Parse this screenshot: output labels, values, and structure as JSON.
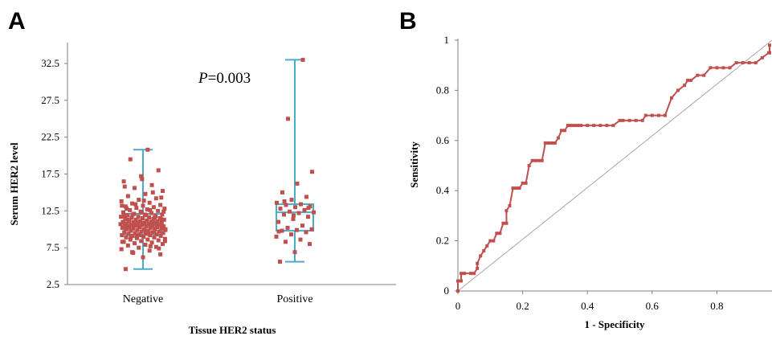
{
  "panel_a": {
    "label": "A"
  },
  "panel_b": {
    "label": "B"
  },
  "chart_data": [
    {
      "type": "box",
      "panel": "A",
      "title": "",
      "xlabel": "Tissue HER2 status",
      "ylabel": "Serum HER2 level",
      "ylim": [
        2.5,
        35
      ],
      "yticks": [
        "2.5",
        "7.5",
        "12.5",
        "17.5",
        "22.5",
        "27.5",
        "32.5"
      ],
      "categories": [
        "Negative",
        "Positive"
      ],
      "annotation": {
        "italic": "P",
        "text": "=0.003"
      },
      "boxes": [
        {
          "category": "Negative",
          "min": 4.6,
          "q1": 9.3,
          "median": 10.6,
          "q3": 12.1,
          "max": 20.8
        },
        {
          "category": "Positive",
          "min": 5.6,
          "q1": 9.8,
          "median": 12.3,
          "q3": 13.4,
          "max": 33.0
        }
      ],
      "points": {
        "Negative": [
          4.6,
          6.2,
          6.6,
          6.9,
          7.1,
          7.3,
          7.5,
          7.6,
          7.8,
          7.9,
          8.0,
          8.1,
          8.2,
          8.3,
          8.4,
          8.5,
          8.6,
          8.6,
          8.7,
          8.8,
          8.9,
          8.9,
          9.0,
          9.1,
          9.1,
          9.2,
          9.2,
          9.3,
          9.3,
          9.4,
          9.4,
          9.5,
          9.5,
          9.6,
          9.6,
          9.7,
          9.7,
          9.8,
          9.8,
          9.9,
          9.9,
          10.0,
          10.0,
          10.0,
          10.1,
          10.1,
          10.2,
          10.2,
          10.3,
          10.3,
          10.3,
          10.4,
          10.4,
          10.5,
          10.5,
          10.5,
          10.6,
          10.6,
          10.6,
          10.7,
          10.7,
          10.8,
          10.8,
          10.8,
          10.9,
          10.9,
          11.0,
          11.0,
          11.0,
          11.1,
          11.1,
          11.2,
          11.2,
          11.3,
          11.3,
          11.4,
          11.4,
          11.5,
          11.5,
          11.6,
          11.6,
          11.7,
          11.7,
          11.8,
          11.9,
          12.0,
          12.0,
          12.1,
          12.2,
          12.3,
          12.4,
          12.5,
          12.6,
          12.7,
          12.8,
          12.9,
          13.0,
          13.1,
          13.2,
          13.3,
          13.5,
          13.6,
          13.8,
          14.0,
          14.2,
          14.5,
          14.8,
          15.2,
          15.6,
          16.0,
          16.5,
          17.2,
          18.0,
          19.5,
          20.8,
          8.4,
          9.0,
          9.6,
          10.2,
          10.8,
          11.4,
          12.0,
          12.6,
          13.2,
          10.4,
          10.9,
          11.3,
          9.8,
          10.1,
          10.6,
          11.0,
          11.8,
          12.3,
          7.4,
          8.9,
          9.4,
          10.0,
          10.7,
          11.6,
          12.8,
          13.9,
          14.3,
          6.8,
          7.7,
          8.3,
          9.2,
          10.3,
          11.1,
          11.9,
          12.4,
          13.4,
          15.0,
          15.8,
          16.8
        ],
        "Positive": [
          5.6,
          6.9,
          8.0,
          8.3,
          8.6,
          9.0,
          9.3,
          9.6,
          9.8,
          9.9,
          10.0,
          10.2,
          10.5,
          11.0,
          11.4,
          11.7,
          12.0,
          12.2,
          12.3,
          12.4,
          12.6,
          12.8,
          13.0,
          13.1,
          13.3,
          13.4,
          13.6,
          14.0,
          14.4,
          15.0,
          16.2,
          17.8,
          25.0,
          33.0,
          9.7,
          11.9,
          12.9,
          13.8
        ]
      }
    },
    {
      "type": "line",
      "panel": "B",
      "title": "",
      "xlabel": "1 - Specificity",
      "ylabel": "Sensitivity",
      "xlim": [
        0,
        1
      ],
      "ylim": [
        0,
        1
      ],
      "xticks": [
        "0",
        "0.2",
        "0.4",
        "0.6",
        "0.8"
      ],
      "yticks": [
        "0",
        "0.2",
        "0.4",
        "0.6",
        "0.8",
        "1"
      ],
      "reference_line": [
        [
          0,
          0
        ],
        [
          1,
          1
        ]
      ],
      "series": [
        {
          "x": [
            0,
            0,
            0.01,
            0.01,
            0.02,
            0.04,
            0.05,
            0.06,
            0.06,
            0.07,
            0.08,
            0.09,
            0.1,
            0.11,
            0.12,
            0.13,
            0.14,
            0.15,
            0.15,
            0.16,
            0.17,
            0.18,
            0.19,
            0.2,
            0.21,
            0.22,
            0.23,
            0.24,
            0.25,
            0.26,
            0.27,
            0.28,
            0.29,
            0.3,
            0.31,
            0.32,
            0.33,
            0.34,
            0.35,
            0.36,
            0.37,
            0.38,
            0.4,
            0.42,
            0.44,
            0.46,
            0.48,
            0.5,
            0.51,
            0.53,
            0.55,
            0.57,
            0.58,
            0.6,
            0.62,
            0.64,
            0.66,
            0.68,
            0.7,
            0.71,
            0.72,
            0.74,
            0.76,
            0.78,
            0.8,
            0.82,
            0.84,
            0.86,
            0.88,
            0.9,
            0.92,
            0.94,
            0.96,
            0.97,
            0.98,
            1.0
          ],
          "y": [
            0,
            0.04,
            0.04,
            0.07,
            0.07,
            0.07,
            0.07,
            0.09,
            0.11,
            0.14,
            0.16,
            0.18,
            0.2,
            0.2,
            0.23,
            0.23,
            0.27,
            0.27,
            0.32,
            0.34,
            0.41,
            0.41,
            0.41,
            0.43,
            0.43,
            0.5,
            0.52,
            0.52,
            0.52,
            0.52,
            0.59,
            0.59,
            0.59,
            0.59,
            0.61,
            0.64,
            0.64,
            0.66,
            0.66,
            0.66,
            0.66,
            0.66,
            0.66,
            0.66,
            0.66,
            0.66,
            0.66,
            0.68,
            0.68,
            0.68,
            0.68,
            0.68,
            0.7,
            0.7,
            0.7,
            0.7,
            0.77,
            0.8,
            0.82,
            0.84,
            0.84,
            0.86,
            0.86,
            0.89,
            0.89,
            0.89,
            0.89,
            0.91,
            0.91,
            0.91,
            0.91,
            0.93,
            0.95,
            0.95,
            0.95,
            0.98
          ]
        }
      ]
    }
  ]
}
